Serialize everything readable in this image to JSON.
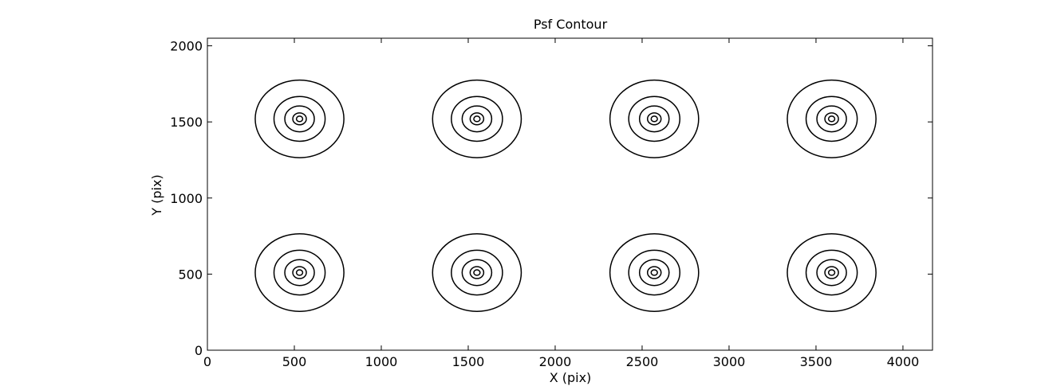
{
  "chart_data": {
    "type": "contour",
    "title": "Psf Contour",
    "x_label": "X (pix)",
    "y_label": "Y (pix)",
    "xlim": [
      0,
      4170
    ],
    "ylim": [
      0,
      2050
    ],
    "xticks": [
      0,
      500,
      1000,
      1500,
      2000,
      2500,
      3000,
      3500,
      4000
    ],
    "yticks": [
      0,
      500,
      1000,
      1500,
      2000
    ],
    "color": "#000000",
    "x": [
      530,
      1550,
      2570,
      3590,
      530,
      1550,
      2570,
      3590
    ],
    "y": [
      1520,
      1520,
      1520,
      1520,
      510,
      510,
      510,
      510
    ],
    "radii": [
      [
        255,
        147,
        85,
        39,
        18
      ],
      [
        255,
        147,
        85,
        39,
        18
      ],
      [
        255,
        147,
        85,
        39,
        18
      ],
      [
        255,
        147,
        85,
        39,
        18
      ],
      [
        255,
        147,
        85,
        39,
        18
      ],
      [
        255,
        147,
        85,
        39,
        18
      ],
      [
        255,
        147,
        85,
        39,
        18
      ],
      [
        255,
        147,
        85,
        39,
        18
      ]
    ]
  }
}
